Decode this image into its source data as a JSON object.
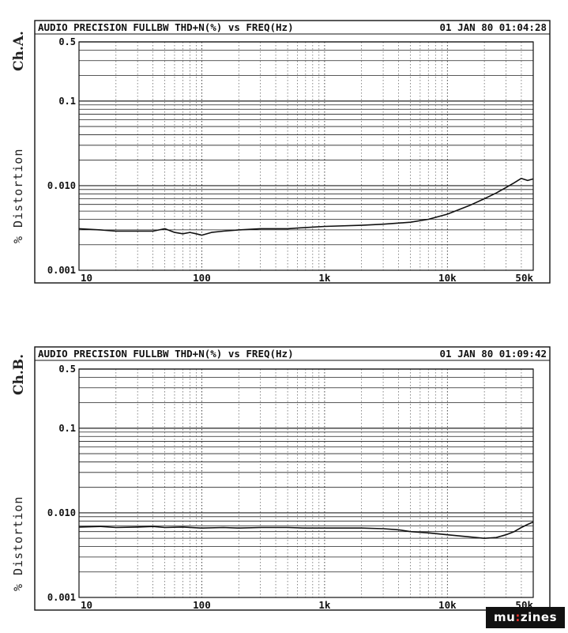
{
  "chart_data": [
    {
      "type": "line",
      "channel_label": "Ch.A.",
      "title": "AUDIO PRECISION FULLBW THD+N(%) vs FREQ(Hz)",
      "timestamp": "01 JAN 80 01:04:28",
      "ylabel": "% Distortion",
      "xscale": "log",
      "yscale": "log",
      "xlim": [
        10,
        50000
      ],
      "ylim": [
        0.001,
        0.5
      ],
      "grid": true,
      "xticks": [
        {
          "value": 10,
          "label": "10"
        },
        {
          "value": 100,
          "label": "100"
        },
        {
          "value": 1000,
          "label": "1k"
        },
        {
          "value": 10000,
          "label": "10k"
        },
        {
          "value": 50000,
          "label": "50k"
        }
      ],
      "yticks": [
        {
          "value": 0.5,
          "label": "0.5"
        },
        {
          "value": 0.1,
          "label": "0.1"
        },
        {
          "value": 0.01,
          "label": "0.010"
        },
        {
          "value": 0.001,
          "label": "0.001"
        }
      ],
      "series": [
        {
          "x": [
            10,
            15,
            20,
            30,
            40,
            50,
            60,
            70,
            80,
            90,
            100,
            120,
            150,
            200,
            300,
            500,
            700,
            1000,
            2000,
            3000,
            5000,
            7000,
            10000,
            15000,
            20000,
            25000,
            30000,
            35000,
            40000,
            45000,
            50000
          ],
          "y": [
            0.0031,
            0.003,
            0.0029,
            0.0029,
            0.0029,
            0.0031,
            0.0028,
            0.0027,
            0.0028,
            0.0027,
            0.0026,
            0.0028,
            0.0029,
            0.003,
            0.0031,
            0.0031,
            0.0032,
            0.0033,
            0.0034,
            0.0035,
            0.0037,
            0.004,
            0.0046,
            0.0058,
            0.007,
            0.0082,
            0.0095,
            0.0108,
            0.0122,
            0.0115,
            0.012
          ]
        }
      ]
    },
    {
      "type": "line",
      "channel_label": "Ch.B.",
      "title": "AUDIO PRECISION FULLBW THD+N(%) vs FREQ(Hz)",
      "timestamp": "01 JAN 80 01:09:42",
      "ylabel": "% Distortion",
      "xscale": "log",
      "yscale": "log",
      "xlim": [
        10,
        50000
      ],
      "ylim": [
        0.001,
        0.5
      ],
      "grid": true,
      "xticks": [
        {
          "value": 10,
          "label": "10"
        },
        {
          "value": 100,
          "label": "100"
        },
        {
          "value": 1000,
          "label": "1k"
        },
        {
          "value": 10000,
          "label": "10k"
        },
        {
          "value": 50000,
          "label": "50k"
        }
      ],
      "yticks": [
        {
          "value": 0.5,
          "label": "0.5"
        },
        {
          "value": 0.1,
          "label": "0.1"
        },
        {
          "value": 0.01,
          "label": "0.010"
        },
        {
          "value": 0.001,
          "label": "0.001"
        }
      ],
      "series": [
        {
          "x": [
            10,
            15,
            20,
            30,
            40,
            50,
            70,
            100,
            150,
            200,
            300,
            500,
            700,
            1000,
            2000,
            3000,
            4000,
            5000,
            7000,
            10000,
            15000,
            20000,
            25000,
            30000,
            35000,
            40000,
            45000,
            50000
          ],
          "y": [
            0.0068,
            0.0069,
            0.0067,
            0.0068,
            0.0069,
            0.0067,
            0.0068,
            0.0066,
            0.0067,
            0.0066,
            0.0067,
            0.0067,
            0.0066,
            0.0066,
            0.0066,
            0.0065,
            0.0063,
            0.006,
            0.0058,
            0.0055,
            0.0052,
            0.005,
            0.0051,
            0.0055,
            0.006,
            0.0067,
            0.0073,
            0.0078
          ]
        }
      ]
    }
  ],
  "branding": {
    "logo_text_left": "mu",
    "logo_text_dot": ":",
    "logo_text_right": "zines"
  }
}
